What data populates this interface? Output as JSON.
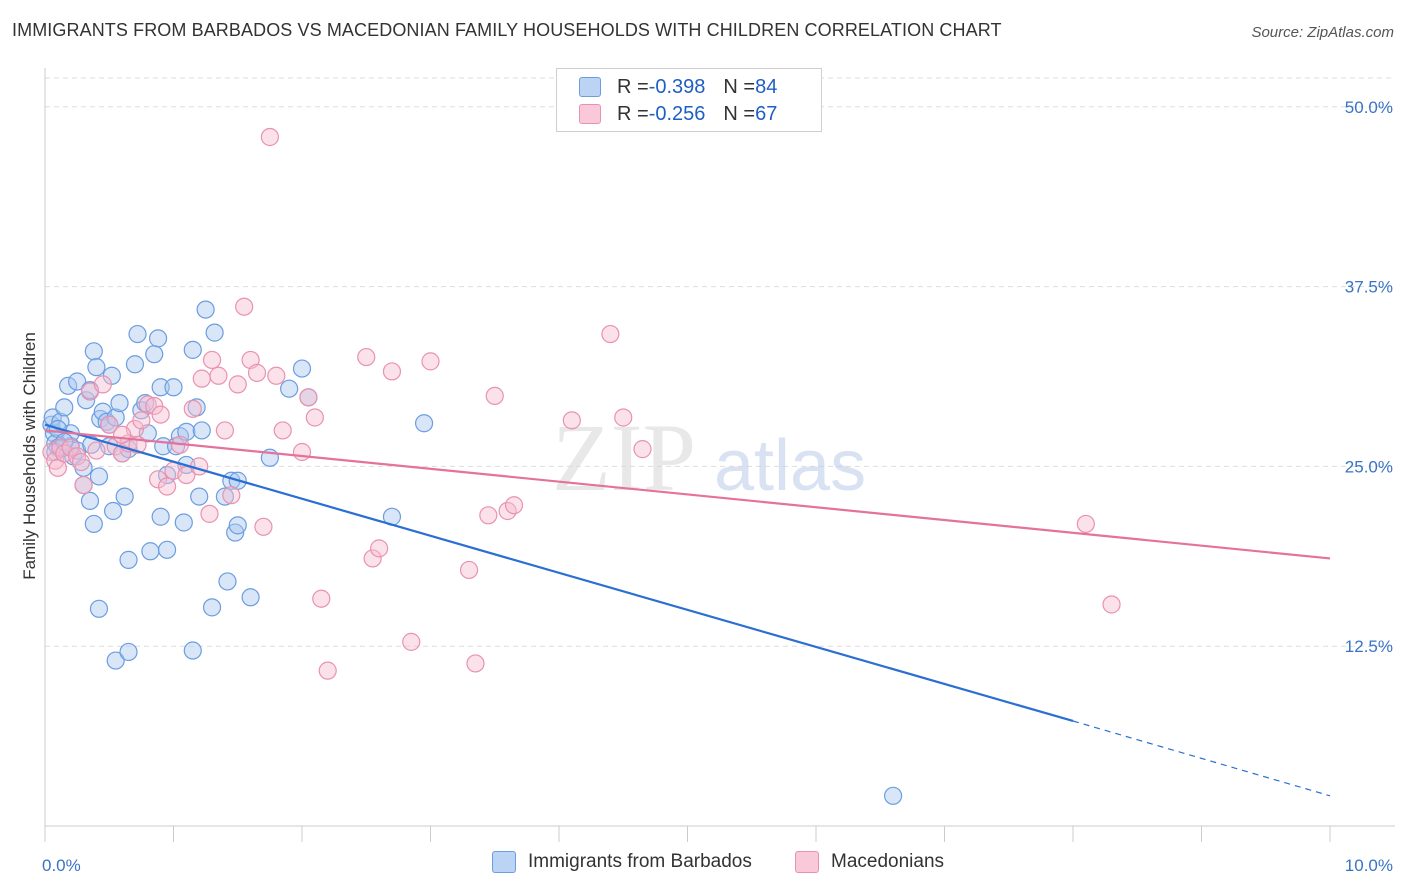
{
  "title": "IMMIGRANTS FROM BARBADOS VS MACEDONIAN FAMILY HOUSEHOLDS WITH CHILDREN CORRELATION CHART",
  "source": "Source: ZipAtlas.com",
  "watermark": {
    "zip": "ZIP",
    "atlas": "atlas"
  },
  "colors": {
    "blue_fill": "#a8c8f0",
    "blue_stroke": "#6b9de0",
    "blue_line": "#2a6fd1",
    "pink_fill": "#f6bcd0",
    "pink_stroke": "#e992b0",
    "pink_line": "#e4729c",
    "tick_label": "#3a73c6",
    "grid": "#dddddd"
  },
  "legend": {
    "rows": [
      {
        "r_label": "R = ",
        "r_value": "-0.398",
        "n_label": "N = ",
        "n_value": "84",
        "color": "blue"
      },
      {
        "r_label": "R = ",
        "r_value": "-0.256",
        "n_label": "N = ",
        "n_value": "67",
        "color": "pink"
      }
    ]
  },
  "chart_data": {
    "type": "scatter",
    "title": "IMMIGRANTS FROM BARBADOS VS MACEDONIAN FAMILY HOUSEHOLDS WITH CHILDREN CORRELATION CHART",
    "xlabel": "",
    "ylabel": "Family Households with Children",
    "xlim": [
      0,
      10
    ],
    "ylim": [
      0,
      52
    ],
    "x_tick_labels": [
      {
        "value": 0,
        "label": "0.0%"
      },
      {
        "value": 10,
        "label": "10.0%"
      }
    ],
    "y_tick_labels": [
      {
        "value": 12.5,
        "label": "12.5%"
      },
      {
        "value": 25.0,
        "label": "25.0%"
      },
      {
        "value": 37.5,
        "label": "37.5%"
      },
      {
        "value": 50.0,
        "label": "50.0%"
      }
    ],
    "grid": true,
    "legend_position": "top-center",
    "series": [
      {
        "name": "Immigrants from Barbados",
        "color": "blue",
        "r": -0.398,
        "n": 84,
        "trend": {
          "x0": 0.0,
          "y0": 27.9,
          "x1": 8.0,
          "y1": 7.3,
          "dash_to_x": 10.0,
          "dash_to_y": 2.1
        },
        "points": [
          [
            0.05,
            27.9
          ],
          [
            0.07,
            27.3
          ],
          [
            0.08,
            26.6
          ],
          [
            0.06,
            28.4
          ],
          [
            0.1,
            26.3
          ],
          [
            0.12,
            28.1
          ],
          [
            0.15,
            29.1
          ],
          [
            0.18,
            30.6
          ],
          [
            0.2,
            26.4
          ],
          [
            0.22,
            25.7
          ],
          [
            0.25,
            30.9
          ],
          [
            0.25,
            26.1
          ],
          [
            0.3,
            24.9
          ],
          [
            0.32,
            29.6
          ],
          [
            0.35,
            30.3
          ],
          [
            0.36,
            26.5
          ],
          [
            0.38,
            33.0
          ],
          [
            0.4,
            31.9
          ],
          [
            0.42,
            24.3
          ],
          [
            0.43,
            28.3
          ],
          [
            0.45,
            28.8
          ],
          [
            0.48,
            28.1
          ],
          [
            0.5,
            26.4
          ],
          [
            0.5,
            27.9
          ],
          [
            0.52,
            31.3
          ],
          [
            0.53,
            21.9
          ],
          [
            0.55,
            28.4
          ],
          [
            0.58,
            29.4
          ],
          [
            0.6,
            25.9
          ],
          [
            0.62,
            22.9
          ],
          [
            0.65,
            26.2
          ],
          [
            0.65,
            18.5
          ],
          [
            0.7,
            32.1
          ],
          [
            0.72,
            34.2
          ],
          [
            0.75,
            28.9
          ],
          [
            0.78,
            29.4
          ],
          [
            0.8,
            27.3
          ],
          [
            0.82,
            19.1
          ],
          [
            0.85,
            32.8
          ],
          [
            0.88,
            33.9
          ],
          [
            0.9,
            30.5
          ],
          [
            0.9,
            21.5
          ],
          [
            0.92,
            26.4
          ],
          [
            0.95,
            24.4
          ],
          [
            0.95,
            19.2
          ],
          [
            1.0,
            30.5
          ],
          [
            1.02,
            26.4
          ],
          [
            1.05,
            27.1
          ],
          [
            1.08,
            21.1
          ],
          [
            1.1,
            27.4
          ],
          [
            1.1,
            25.1
          ],
          [
            1.15,
            33.1
          ],
          [
            1.18,
            29.1
          ],
          [
            1.2,
            22.9
          ],
          [
            1.22,
            27.5
          ],
          [
            1.25,
            35.9
          ],
          [
            1.3,
            15.2
          ],
          [
            1.32,
            34.3
          ],
          [
            1.4,
            22.9
          ],
          [
            1.42,
            17.0
          ],
          [
            1.45,
            24.0
          ],
          [
            1.48,
            20.4
          ],
          [
            1.5,
            24.0
          ],
          [
            1.5,
            20.9
          ],
          [
            1.6,
            15.9
          ],
          [
            1.75,
            25.6
          ],
          [
            1.9,
            30.4
          ],
          [
            2.0,
            31.8
          ],
          [
            2.05,
            29.8
          ],
          [
            2.7,
            21.5
          ],
          [
            2.95,
            28.0
          ],
          [
            0.3,
            23.7
          ],
          [
            0.35,
            22.6
          ],
          [
            0.38,
            21.0
          ],
          [
            0.42,
            15.1
          ],
          [
            0.55,
            11.5
          ],
          [
            0.65,
            12.1
          ],
          [
            1.15,
            12.2
          ],
          [
            0.2,
            27.3
          ],
          [
            0.12,
            26.2
          ],
          [
            0.08,
            26.0
          ],
          [
            0.1,
            27.6
          ],
          [
            0.15,
            26.7
          ],
          [
            6.6,
            2.1
          ]
        ]
      },
      {
        "name": "Macedonians",
        "color": "pink",
        "r": -0.256,
        "n": 67,
        "trend": {
          "x0": 0.0,
          "y0": 27.5,
          "x1": 10.0,
          "y1": 18.6
        },
        "points": [
          [
            0.05,
            26.0
          ],
          [
            0.08,
            25.4
          ],
          [
            0.1,
            24.9
          ],
          [
            0.12,
            26.3
          ],
          [
            0.15,
            25.9
          ],
          [
            0.2,
            26.3
          ],
          [
            0.25,
            25.7
          ],
          [
            0.28,
            25.3
          ],
          [
            0.3,
            23.7
          ],
          [
            0.35,
            30.2
          ],
          [
            0.4,
            26.1
          ],
          [
            0.45,
            30.7
          ],
          [
            0.5,
            27.9
          ],
          [
            0.55,
            26.4
          ],
          [
            0.6,
            25.9
          ],
          [
            0.65,
            26.6
          ],
          [
            0.7,
            27.6
          ],
          [
            0.72,
            26.5
          ],
          [
            0.75,
            28.2
          ],
          [
            0.8,
            29.3
          ],
          [
            0.85,
            29.2
          ],
          [
            0.88,
            24.1
          ],
          [
            0.9,
            28.6
          ],
          [
            0.95,
            23.6
          ],
          [
            1.0,
            24.7
          ],
          [
            1.05,
            26.5
          ],
          [
            1.1,
            24.4
          ],
          [
            1.15,
            29.0
          ],
          [
            1.2,
            25.0
          ],
          [
            1.22,
            31.1
          ],
          [
            1.28,
            21.7
          ],
          [
            1.3,
            32.4
          ],
          [
            1.35,
            31.3
          ],
          [
            1.4,
            27.5
          ],
          [
            1.45,
            23.0
          ],
          [
            1.5,
            30.7
          ],
          [
            1.55,
            36.1
          ],
          [
            1.6,
            32.4
          ],
          [
            1.65,
            31.5
          ],
          [
            1.7,
            20.8
          ],
          [
            1.75,
            47.9
          ],
          [
            1.8,
            31.3
          ],
          [
            1.85,
            27.5
          ],
          [
            2.0,
            26.0
          ],
          [
            2.05,
            29.8
          ],
          [
            2.1,
            28.4
          ],
          [
            2.15,
            15.8
          ],
          [
            2.2,
            10.8
          ],
          [
            2.5,
            32.6
          ],
          [
            2.55,
            18.6
          ],
          [
            2.6,
            19.3
          ],
          [
            2.7,
            31.6
          ],
          [
            2.85,
            12.8
          ],
          [
            3.0,
            32.3
          ],
          [
            3.3,
            17.8
          ],
          [
            3.35,
            11.3
          ],
          [
            3.45,
            21.6
          ],
          [
            3.5,
            29.9
          ],
          [
            3.6,
            21.9
          ],
          [
            3.65,
            22.3
          ],
          [
            4.1,
            28.2
          ],
          [
            4.4,
            34.2
          ],
          [
            4.5,
            28.4
          ],
          [
            4.65,
            26.2
          ],
          [
            8.1,
            21.0
          ],
          [
            8.3,
            15.4
          ],
          [
            0.6,
            27.2
          ]
        ]
      }
    ]
  },
  "bottom_legend": [
    {
      "label": "Immigrants from Barbados",
      "color": "blue"
    },
    {
      "label": "Macedonians",
      "color": "pink"
    }
  ]
}
